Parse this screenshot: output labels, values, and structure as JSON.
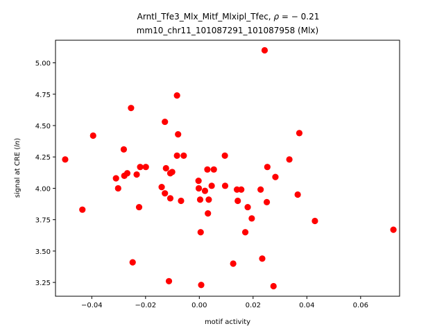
{
  "chart_data": {
    "type": "scatter",
    "title_line1_main": "Arntl_Tfe3_Mlx_Mitf_Mlxipl_Tfec, ",
    "title_rho_symbol": "ρ",
    "title_rho_value": " = − 0.21",
    "title_line2": "mm10_chr11_101087291_101087958 (Mlx)",
    "xlabel": "motif activity",
    "ylabel_prefix": "signal at CRE (",
    "ylabel_italic": "ln",
    "ylabel_suffix": ")",
    "xlim": [
      -0.0535,
      0.0745
    ],
    "ylim": [
      3.14,
      5.18
    ],
    "xticks": [
      {
        "value": -0.04,
        "label": "−0.04"
      },
      {
        "value": -0.02,
        "label": "−0.02"
      },
      {
        "value": 0.0,
        "label": "0.00"
      },
      {
        "value": 0.02,
        "label": "0.02"
      },
      {
        "value": 0.04,
        "label": "0.04"
      },
      {
        "value": 0.06,
        "label": "0.06"
      }
    ],
    "yticks": [
      {
        "value": 3.25,
        "label": "3.25"
      },
      {
        "value": 3.5,
        "label": "3.50"
      },
      {
        "value": 3.75,
        "label": "3.75"
      },
      {
        "value": 4.0,
        "label": "4.00"
      },
      {
        "value": 4.25,
        "label": "4.25"
      },
      {
        "value": 4.5,
        "label": "4.50"
      },
      {
        "value": 4.75,
        "label": "4.75"
      },
      {
        "value": 5.0,
        "label": "5.00"
      }
    ],
    "grid": false,
    "marker_color": "#ff0000",
    "points": [
      {
        "x": -0.0499,
        "y": 4.23
      },
      {
        "x": -0.0435,
        "y": 3.83
      },
      {
        "x": -0.0395,
        "y": 4.42
      },
      {
        "x": -0.031,
        "y": 4.08
      },
      {
        "x": -0.0302,
        "y": 4.0
      },
      {
        "x": -0.0281,
        "y": 4.31
      },
      {
        "x": -0.0279,
        "y": 4.1
      },
      {
        "x": -0.0268,
        "y": 4.12
      },
      {
        "x": -0.0254,
        "y": 4.64
      },
      {
        "x": -0.0248,
        "y": 3.41
      },
      {
        "x": -0.0233,
        "y": 4.11
      },
      {
        "x": -0.0224,
        "y": 3.85
      },
      {
        "x": -0.022,
        "y": 4.17
      },
      {
        "x": -0.0199,
        "y": 4.17
      },
      {
        "x": -0.014,
        "y": 4.01
      },
      {
        "x": -0.0128,
        "y": 4.53
      },
      {
        "x": -0.0128,
        "y": 3.96
      },
      {
        "x": -0.0124,
        "y": 4.16
      },
      {
        "x": -0.0113,
        "y": 3.26
      },
      {
        "x": -0.0108,
        "y": 4.12
      },
      {
        "x": -0.0108,
        "y": 3.92
      },
      {
        "x": -0.0101,
        "y": 4.13
      },
      {
        "x": -0.0083,
        "y": 4.74
      },
      {
        "x": -0.0083,
        "y": 4.26
      },
      {
        "x": -0.0079,
        "y": 4.43
      },
      {
        "x": -0.0068,
        "y": 3.9
      },
      {
        "x": -0.0058,
        "y": 4.26
      },
      {
        "x": -0.0003,
        "y": 4.06
      },
      {
        "x": -0.0002,
        "y": 4.0
      },
      {
        "x": 0.0003,
        "y": 3.91
      },
      {
        "x": 0.0005,
        "y": 3.65
      },
      {
        "x": 0.0007,
        "y": 3.23
      },
      {
        "x": 0.0021,
        "y": 3.98
      },
      {
        "x": 0.003,
        "y": 4.15
      },
      {
        "x": 0.0032,
        "y": 3.8
      },
      {
        "x": 0.0035,
        "y": 3.91
      },
      {
        "x": 0.0046,
        "y": 4.02
      },
      {
        "x": 0.0054,
        "y": 4.15
      },
      {
        "x": 0.0095,
        "y": 4.26
      },
      {
        "x": 0.0096,
        "y": 4.02
      },
      {
        "x": 0.0126,
        "y": 3.4
      },
      {
        "x": 0.014,
        "y": 3.99
      },
      {
        "x": 0.0143,
        "y": 3.9
      },
      {
        "x": 0.0156,
        "y": 3.99
      },
      {
        "x": 0.0171,
        "y": 3.65
      },
      {
        "x": 0.018,
        "y": 3.85
      },
      {
        "x": 0.0195,
        "y": 3.76
      },
      {
        "x": 0.0228,
        "y": 3.99
      },
      {
        "x": 0.0234,
        "y": 3.44
      },
      {
        "x": 0.0243,
        "y": 5.1
      },
      {
        "x": 0.0251,
        "y": 3.89
      },
      {
        "x": 0.0253,
        "y": 4.17
      },
      {
        "x": 0.0276,
        "y": 3.22
      },
      {
        "x": 0.0283,
        "y": 4.09
      },
      {
        "x": 0.0335,
        "y": 4.23
      },
      {
        "x": 0.0366,
        "y": 3.95
      },
      {
        "x": 0.0372,
        "y": 4.44
      },
      {
        "x": 0.043,
        "y": 3.74
      },
      {
        "x": 0.0722,
        "y": 3.67
      }
    ]
  }
}
